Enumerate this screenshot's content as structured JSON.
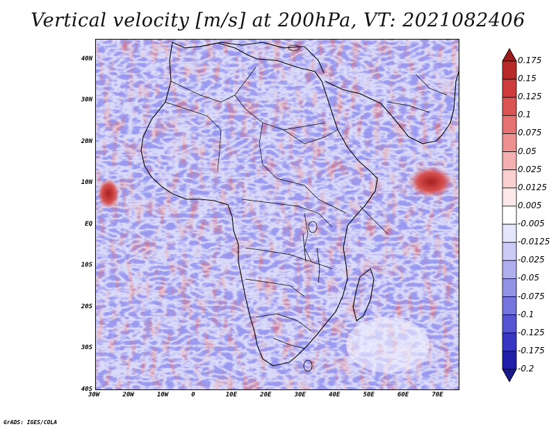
{
  "title": "Vertical velocity [m/s] at 200hPa, VT: 2021082406",
  "credit": "GrADS: IGES/COLA",
  "map": {
    "lon_range": [
      -30,
      76
    ],
    "lat_range": [
      -40,
      45
    ],
    "lat_labels": [
      {
        "lat": 40,
        "text": "40N"
      },
      {
        "lat": 30,
        "text": "30N"
      },
      {
        "lat": 20,
        "text": "20N"
      },
      {
        "lat": 10,
        "text": "10N"
      },
      {
        "lat": 0,
        "text": "EQ"
      },
      {
        "lat": -10,
        "text": "10S"
      },
      {
        "lat": -20,
        "text": "20S"
      },
      {
        "lat": -30,
        "text": "30S"
      },
      {
        "lat": -40,
        "text": "40S"
      }
    ],
    "lon_labels": [
      {
        "lon": -30,
        "text": "30W"
      },
      {
        "lon": -20,
        "text": "20W"
      },
      {
        "lon": -10,
        "text": "10W"
      },
      {
        "lon": 0,
        "text": "0"
      },
      {
        "lon": 10,
        "text": "10E"
      },
      {
        "lon": 20,
        "text": "20E"
      },
      {
        "lon": 30,
        "text": "30E"
      },
      {
        "lon": 40,
        "text": "40E"
      },
      {
        "lon": 50,
        "text": "50E"
      },
      {
        "lon": 60,
        "text": "60E"
      },
      {
        "lon": 70,
        "text": "70E"
      }
    ]
  },
  "colorbar": {
    "labels": [
      "0.175",
      "0.15",
      "0.125",
      "0.1",
      "0.075",
      "0.05",
      "0.025",
      "0.0125",
      "0.005",
      "-0.005",
      "-0.0125",
      "-0.025",
      "-0.05",
      "-0.075",
      "-0.1",
      "-0.125",
      "-0.175",
      "-0.2"
    ],
    "colors": [
      "#9b1c1c",
      "#b82a2a",
      "#cc3c3c",
      "#dc5555",
      "#e67272",
      "#ee9090",
      "#f4b0b0",
      "#f9cfcf",
      "#fde9e9",
      "#ffffff",
      "#e5e5fb",
      "#cbcbf5",
      "#afafee",
      "#9292e6",
      "#7575dd",
      "#5656d2",
      "#3737c4",
      "#1e1ea8",
      "#1a1a8a"
    ]
  }
}
